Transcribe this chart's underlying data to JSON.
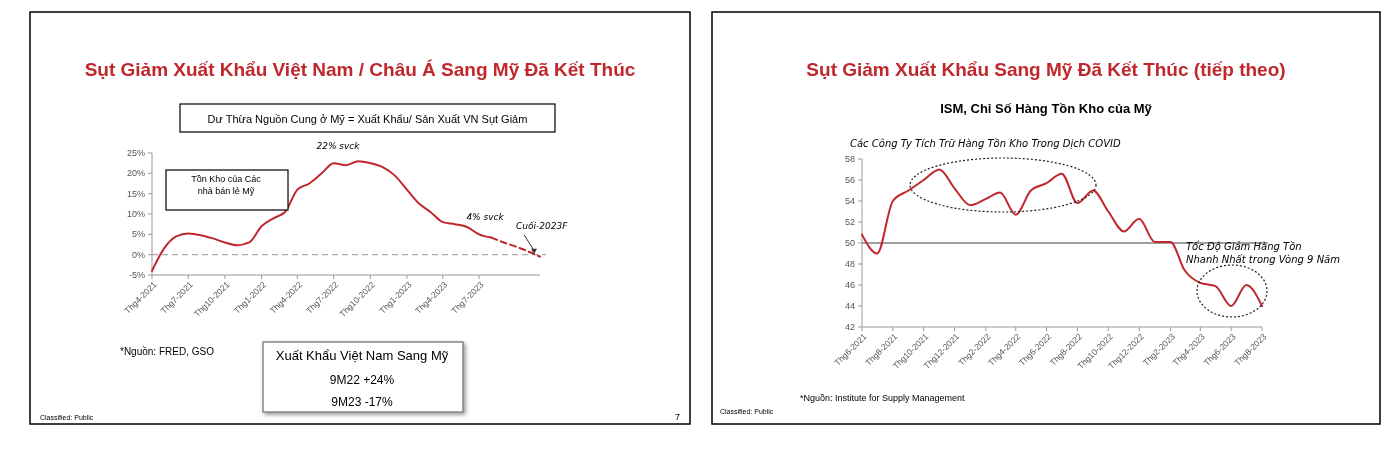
{
  "chart_data": [
    {
      "type": "line",
      "title": "Sụt Giảm Xuất Khẩu Việt Nam / Châu Á Sang Mỹ Đã Kết Thúc",
      "subtitle": "Dư Thừa Nguồn Cung ở Mỹ  = Xuất Khẩu/ Sản Xuất VN Sụt Giảm",
      "series": [
        {
          "color": "#c0272d",
          "line_style": "solid",
          "x": [
            "2021-04",
            "2021-05",
            "2021-06",
            "2021-07",
            "2021-08",
            "2021-09",
            "2021-10",
            "2021-11",
            "2021-12",
            "2022-01",
            "2022-02",
            "2022-03",
            "2022-04",
            "2022-05",
            "2022-06",
            "2022-07",
            "2022-08",
            "2022-09",
            "2022-10",
            "2022-11",
            "2022-12",
            "2023-01",
            "2023-02",
            "2023-03",
            "2023-04",
            "2023-05",
            "2023-06",
            "2023-07",
            "2023-08"
          ],
          "values": [
            -4,
            1.5,
            4.5,
            5.2,
            4.8,
            4,
            3,
            2.3,
            3,
            7,
            9,
            10.5,
            16,
            17.5,
            20,
            22.5,
            22,
            23,
            22.5,
            21.5,
            19.5,
            16,
            12.5,
            10.5,
            8,
            7.5,
            6.8,
            5,
            4.2
          ]
        },
        {
          "color": "#c0272d",
          "line_style": "dashed",
          "x": [
            "2023-08",
            "2023-09",
            "2023-10",
            "2023-11",
            "2023-12"
          ],
          "values": [
            4.2,
            3,
            2,
            0.8,
            -0.5
          ]
        }
      ],
      "xlim": [
        "2021-04",
        "2023-12"
      ],
      "xticks": [
        {
          "value": "2021-04",
          "label": "Thg4-2021"
        },
        {
          "value": "2021-07",
          "label": "Thg7-2021"
        },
        {
          "value": "2021-10",
          "label": "Thg10-2021"
        },
        {
          "value": "2022-01",
          "label": "Thg1-2022"
        },
        {
          "value": "2022-04",
          "label": "Thg4-2022"
        },
        {
          "value": "2022-07",
          "label": "Thg7-2022"
        },
        {
          "value": "2022-10",
          "label": "Thg10-2022"
        },
        {
          "value": "2023-01",
          "label": "Thg1-2023"
        },
        {
          "value": "2023-04",
          "label": "Thg4-2023"
        },
        {
          "value": "2023-07",
          "label": "Thg7-2023"
        }
      ],
      "ylim": [
        -5,
        25
      ],
      "yticks": [
        {
          "value": -5,
          "label": "-5%"
        },
        {
          "value": 0,
          "label": "0%"
        },
        {
          "value": 5,
          "label": "5%"
        },
        {
          "value": 10,
          "label": "10%"
        },
        {
          "value": 15,
          "label": "15%"
        },
        {
          "value": 20,
          "label": "20%"
        },
        {
          "value": 25,
          "label": "25%"
        }
      ],
      "ref_lines": [
        {
          "axis": "y",
          "value": 0,
          "color": "#aaaaaa",
          "line_style": "dashed"
        }
      ],
      "grid": false,
      "marker": "none",
      "annotations": [
        {
          "text": "22% svck",
          "x": "2022-08",
          "y": 23
        },
        {
          "text": "4% svck",
          "x": "2023-07",
          "y": 5
        },
        {
          "text": "Cuối-2023F",
          "x": "2023-11",
          "y": 0
        },
        "Tồn Kho của Các nhà bán lẻ Mỹ",
        "*Nguồn: FRED, GSO",
        "Xuất Khẩu Việt Nam Sang Mỹ",
        "9M22 +24%",
        "9M23 -17%",
        "Classified: Public",
        "7"
      ]
    },
    {
      "type": "line",
      "title": "Sụt Giảm Xuất Khẩu Sang Mỹ Đã Kết Thúc (tiếp theo)",
      "subtitle": "ISM, Chỉ Số Hàng Tồn Kho của Mỹ",
      "series": [
        {
          "color": "#c0272d",
          "line_style": "solid",
          "x": [
            "2021-06",
            "2021-07",
            "2021-08",
            "2021-09",
            "2021-10",
            "2021-11",
            "2021-12",
            "2022-01",
            "2022-02",
            "2022-03",
            "2022-04",
            "2022-05",
            "2022-06",
            "2022-07",
            "2022-08",
            "2022-09",
            "2022-10",
            "2022-11",
            "2022-12",
            "2023-01",
            "2023-02",
            "2023-03",
            "2023-04",
            "2023-05",
            "2023-06",
            "2023-07",
            "2023-08"
          ],
          "values": [
            50.8,
            49,
            54,
            55,
            56,
            57,
            55.2,
            53.6,
            54.2,
            54.8,
            52.7,
            55,
            55.7,
            56.6,
            53.8,
            55,
            53,
            51.1,
            52.3,
            50.1,
            50.1,
            47.4,
            46.2,
            45.9,
            44,
            46,
            44
          ]
        }
      ],
      "xlim": [
        "2021-06",
        "2023-08"
      ],
      "xticks": [
        {
          "value": "2021-06",
          "label": "Thg6-2021"
        },
        {
          "value": "2021-08",
          "label": "Thg8-2021"
        },
        {
          "value": "2021-10",
          "label": "Thg10-2021"
        },
        {
          "value": "2021-12",
          "label": "Thg12-2021"
        },
        {
          "value": "2022-02",
          "label": "Thg2-2022"
        },
        {
          "value": "2022-04",
          "label": "Thg4-2022"
        },
        {
          "value": "2022-06",
          "label": "Thg6-2022"
        },
        {
          "value": "2022-08",
          "label": "Thg8-2022"
        },
        {
          "value": "2022-10",
          "label": "Thg10-2022"
        },
        {
          "value": "2022-12",
          "label": "Thg12-2022"
        },
        {
          "value": "2023-02",
          "label": "Thg2-2023"
        },
        {
          "value": "2023-04",
          "label": "Thg4-2023"
        },
        {
          "value": "2023-06",
          "label": "Thg6-2023"
        },
        {
          "value": "2023-08",
          "label": "Thg8-2023"
        }
      ],
      "ylim": [
        42,
        58
      ],
      "yticks": [
        42,
        44,
        46,
        48,
        50,
        52,
        54,
        56,
        58
      ],
      "ref_lines": [
        {
          "axis": "y",
          "value": 50,
          "color": "#7f7f7f",
          "line_style": "solid"
        }
      ],
      "grid": false,
      "marker": "none",
      "annotations": [
        "Các Công Ty Tích Trữ Hàng Tồn Kho Trong Dịch COVID",
        "Tốc Độ  Giảm Hàng Tồn Nhanh Nhất trong Vòng 9 Năm",
        "*Nguồn: Institute for Supply Management",
        "Classified: Public"
      ]
    }
  ]
}
